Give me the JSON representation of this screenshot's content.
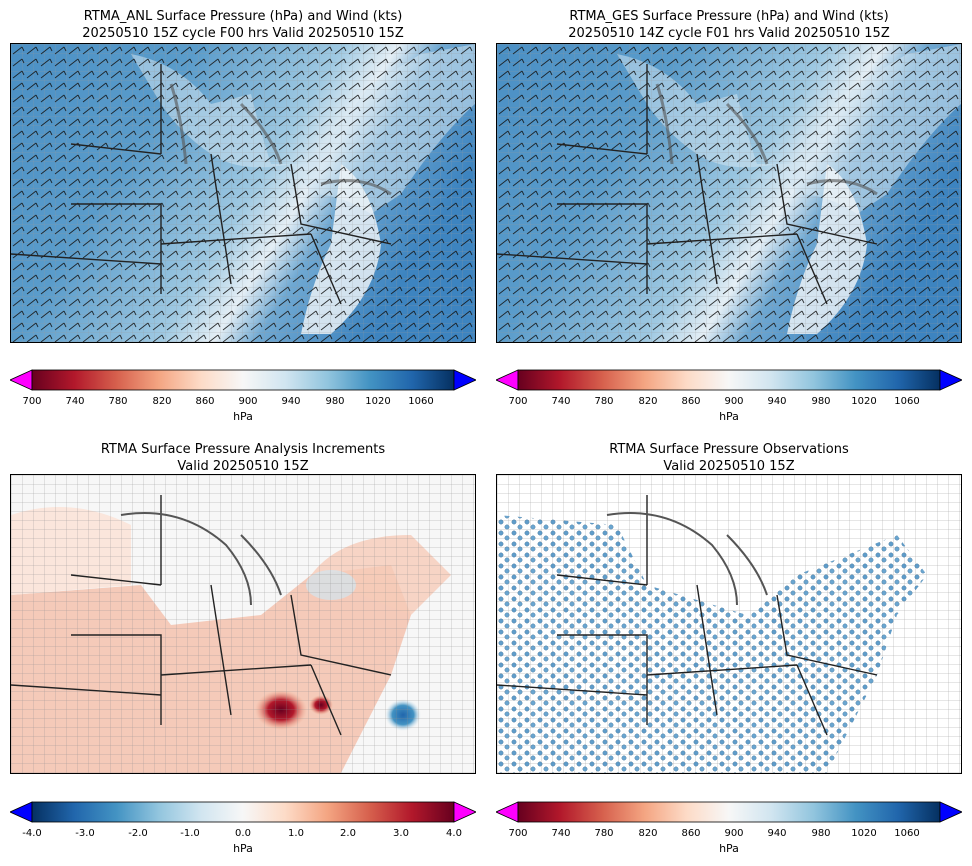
{
  "panels": [
    {
      "title1": "RTMA_ANL Surface Pressure (hPa) and Wind (kts)",
      "title2": "20250510 15Z cycle F00 hrs Valid 20250510 15Z"
    },
    {
      "title1": "RTMA_GES Surface Pressure (hPa) and Wind (kts)",
      "title2": "20250510 14Z cycle F01 hrs Valid 20250510 15Z"
    },
    {
      "title1": "RTMA Surface Pressure Analysis Increments",
      "title2": "Valid 20250510 15Z"
    },
    {
      "title1": "RTMA Surface Pressure Observations",
      "title2": "Valid 20250510 15Z"
    }
  ],
  "colorbars": {
    "pressure": {
      "ticks": [
        "700",
        "740",
        "780",
        "820",
        "860",
        "900",
        "940",
        "980",
        "1020",
        "1060"
      ],
      "range": [
        700,
        1090
      ],
      "unit": "hPa",
      "colors": [
        "#67001f",
        "#b2182b",
        "#d6604d",
        "#f4a582",
        "#fddbc7",
        "#f7f7f7",
        "#d1e5f0",
        "#92c5de",
        "#4393c3",
        "#2166ac",
        "#053061"
      ],
      "under_color": "#ff00ff",
      "over_color": "#0000ff"
    },
    "increment": {
      "ticks": [
        "-4.0",
        "-3.0",
        "-2.0",
        "-1.0",
        "0.0",
        "1.0",
        "2.0",
        "3.0",
        "4.0"
      ],
      "range": [
        -4.0,
        4.0
      ],
      "unit": "hPa",
      "colors": [
        "#053061",
        "#2166ac",
        "#4393c3",
        "#92c5de",
        "#d1e5f0",
        "#f7f7f7",
        "#fddbc7",
        "#f4a582",
        "#d6604d",
        "#b2182b",
        "#67001f"
      ],
      "under_color": "#0000ff",
      "over_color": "#ff00ff"
    }
  }
}
